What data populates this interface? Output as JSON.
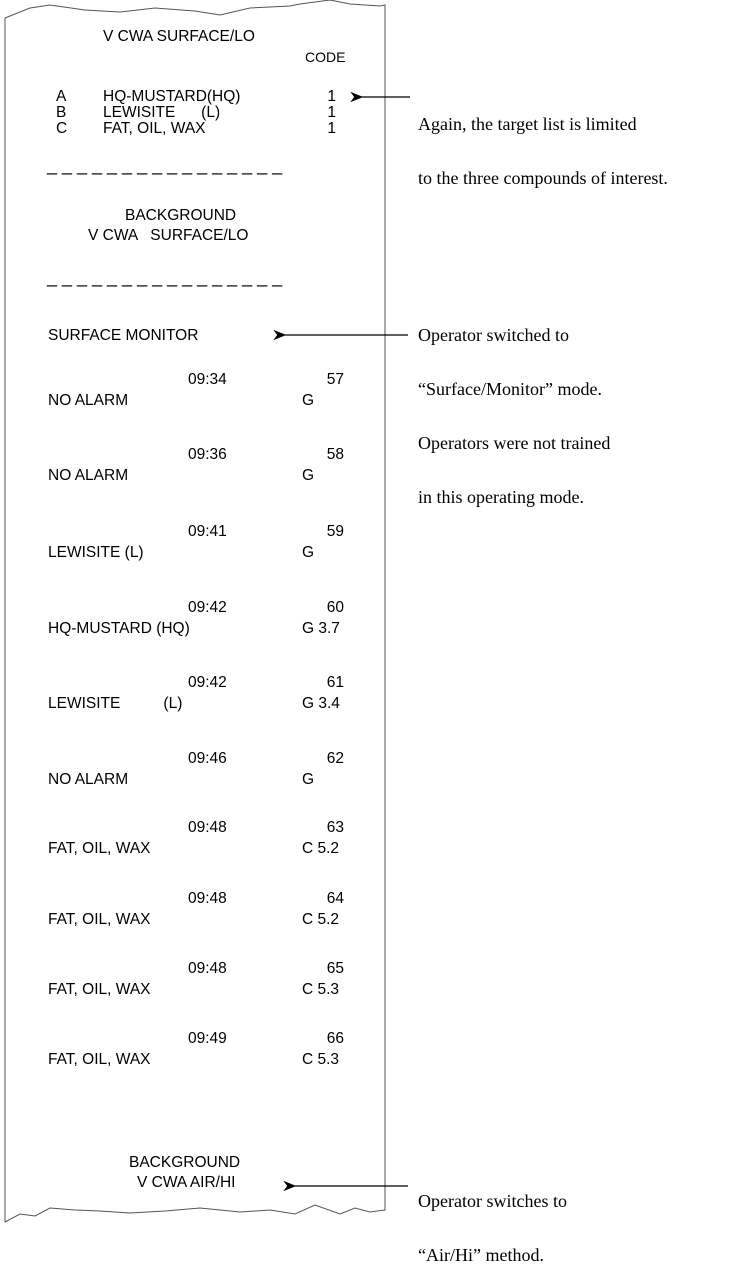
{
  "receipt": {
    "title": "V CWA SURFACE/LO",
    "code_header": "CODE",
    "targets": [
      {
        "letter": "A",
        "name": "HQ-MUSTARD(HQ)",
        "code": "1"
      },
      {
        "letter": "B",
        "name": "LEWISITE      (L)",
        "code": "1"
      },
      {
        "letter": "C",
        "name": "FAT, OIL, WAX",
        "code": "1"
      }
    ],
    "dashes": "_ _ _ _ _ _ _ _ _ _ _ _ _ _ _ _",
    "background1": {
      "line1": "BACKGROUND",
      "line2": "V CWA   SURFACE/LO"
    },
    "mode": "SURFACE MONITOR",
    "entries": [
      {
        "time": "09:34",
        "num": "57",
        "result": "NO ALARM",
        "flag": "G"
      },
      {
        "time": "09:36",
        "num": "58",
        "result": "NO ALARM",
        "flag": "G"
      },
      {
        "time": "09:41",
        "num": "59",
        "result": "LEWISITE (L)",
        "flag": "G"
      },
      {
        "time": "09:42",
        "num": "60",
        "result": "HQ-MUSTARD (HQ)",
        "flag": "G 3.7"
      },
      {
        "time": "09:42",
        "num": "61",
        "result": "LEWISITE          (L)",
        "flag": "G 3.4"
      },
      {
        "time": "09:46",
        "num": "62",
        "result": "NO ALARM",
        "flag": "G"
      },
      {
        "time": "09:48",
        "num": "63",
        "result": "FAT, OIL, WAX",
        "flag": "C 5.2"
      },
      {
        "time": "09:48",
        "num": "64",
        "result": "FAT, OIL, WAX",
        "flag": "C 5.2"
      },
      {
        "time": "09:48",
        "num": "65",
        "result": "FAT, OIL, WAX",
        "flag": "C 5.3"
      },
      {
        "time": "09:49",
        "num": "66",
        "result": "FAT, OIL, WAX",
        "flag": "C 5.3"
      }
    ],
    "background2": {
      "line1": "BACKGROUND",
      "line2": "V CWA AIR/HI"
    }
  },
  "annotations": {
    "target_list": [
      "Again, the target list is limited",
      "to the three compounds of interest."
    ],
    "surface_monitor": [
      "Operator switched to",
      "“Surface/Monitor” mode.",
      "Operators were not trained",
      "in this operating mode."
    ],
    "air_hi": [
      "Operator switches to",
      "“Air/Hi” method."
    ]
  }
}
